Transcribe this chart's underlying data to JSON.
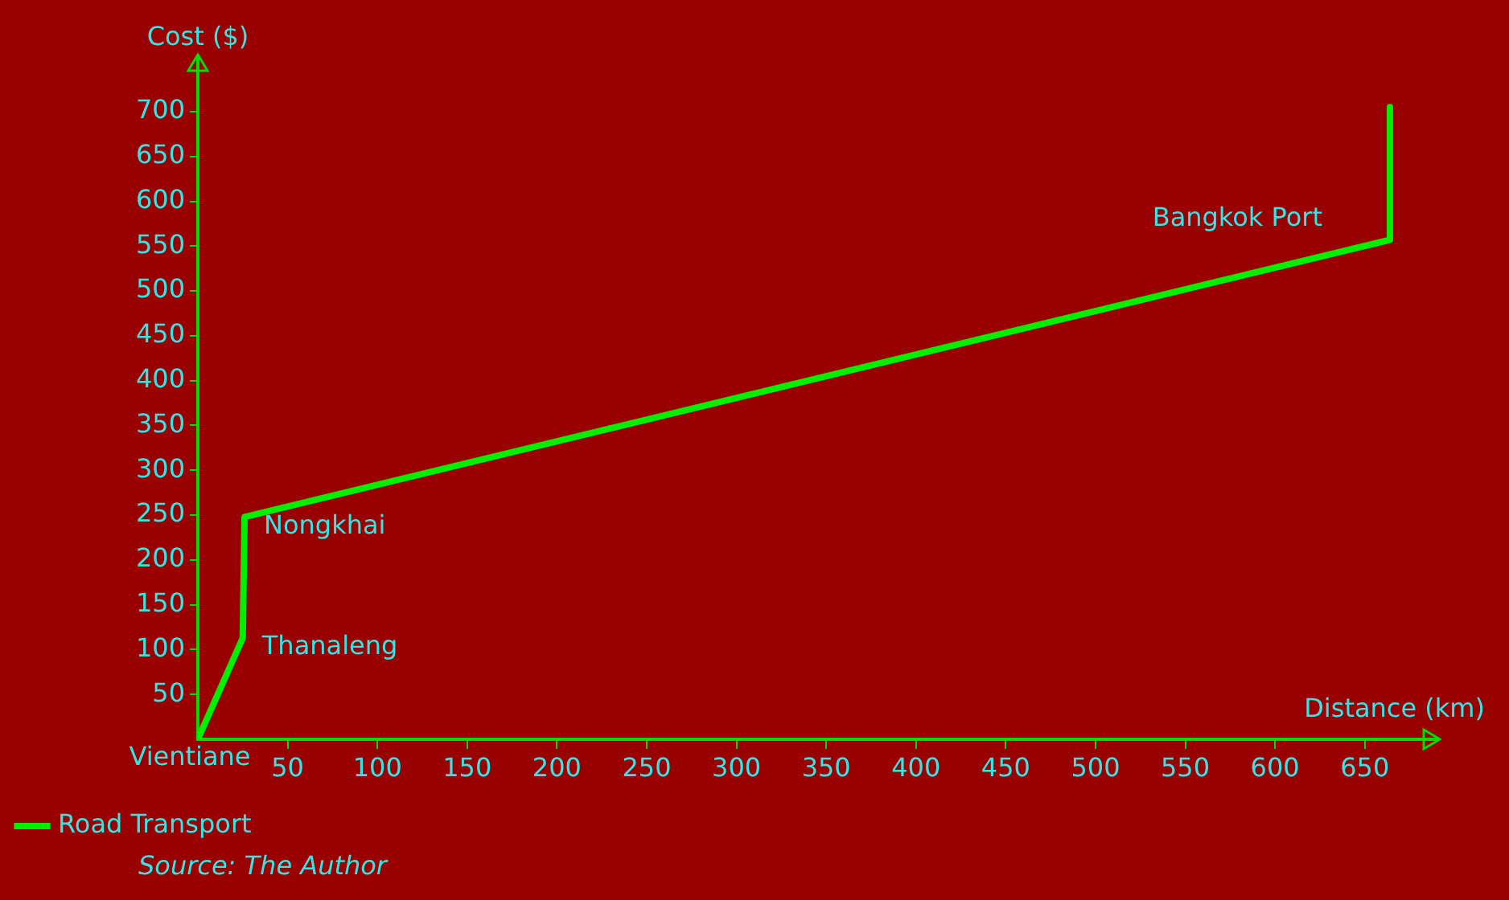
{
  "chart_data": {
    "type": "line",
    "xlabel": "Distance (km)",
    "ylabel": "Cost ($)",
    "x": [
      0,
      25,
      26,
      664,
      664
    ],
    "series": [
      {
        "name": "Road Transport",
        "color": "#00ee00",
        "values": [
          0,
          113,
          248,
          557,
          705
        ]
      }
    ],
    "xlim": [
      0,
      690
    ],
    "ylim": [
      0,
      760
    ],
    "xticks": [
      50,
      100,
      150,
      200,
      250,
      300,
      350,
      400,
      450,
      500,
      550,
      600,
      650
    ],
    "yticks": [
      50,
      100,
      150,
      200,
      250,
      300,
      350,
      400,
      450,
      500,
      550,
      600,
      650,
      700
    ],
    "grid": false,
    "legend": "bottom left",
    "marker": "none",
    "line_style": "solid",
    "annotations": [
      {
        "text": "Vientiane",
        "x": 0,
        "y": 0
      },
      {
        "text": "Thanaleng",
        "x": 25,
        "y": 113
      },
      {
        "text": "Nongkhai",
        "x": 26,
        "y": 248
      },
      {
        "text": "Bangkok Port",
        "x": 664,
        "y": 557
      },
      "Source: The Author"
    ]
  }
}
